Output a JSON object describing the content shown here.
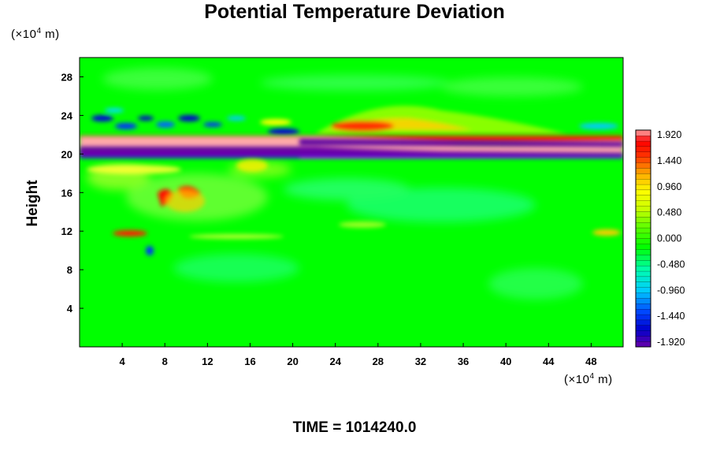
{
  "title": "Potential Temperature Deviation",
  "yunit_prefix": "(×10",
  "yunit_exp": "4",
  "yunit_suffix": " m)",
  "xunit_prefix": "(×10",
  "xunit_exp": "4",
  "xunit_suffix": " m)",
  "ylabel": "Height",
  "time_label": "TIME = 1014240.0",
  "chart_data": {
    "type": "heatmap",
    "title": "Potential Temperature Deviation",
    "xlabel": "",
    "ylabel": "Height",
    "x_unit": "(×10^4 m)",
    "y_unit": "(×10^4 m)",
    "xlim": [
      0,
      51
    ],
    "ylim": [
      0,
      30
    ],
    "x_ticks": [
      4,
      8,
      12,
      16,
      20,
      24,
      28,
      32,
      36,
      40,
      44,
      48
    ],
    "y_ticks": [
      4,
      8,
      12,
      16,
      20,
      24,
      28
    ],
    "colorbar": {
      "range": [
        -1.92,
        1.92
      ],
      "tick_labels": [
        "1.920",
        "1.440",
        "0.960",
        "0.480",
        "0.000",
        "-0.480",
        "-0.960",
        "-1.440",
        "-1.920"
      ]
    }
  },
  "colors": {
    "background_field": "#00ff00",
    "positive_extreme": "#ffaaaa",
    "negative_extreme": "#6a00a8"
  }
}
